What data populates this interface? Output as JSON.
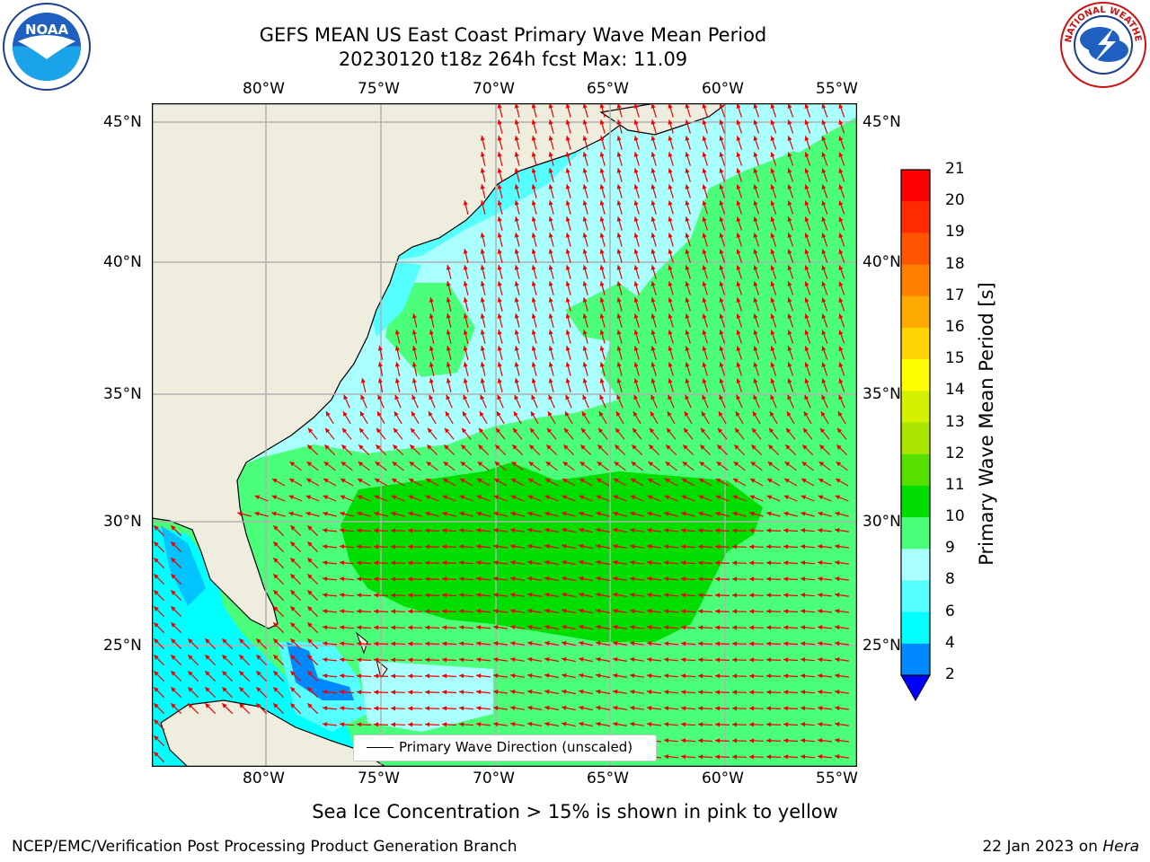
{
  "header": {
    "title_line1": "GEFS MEAN US East Coast Primary Wave Mean Period",
    "title_line2": "20230120 t18z 264h fcst   Max: 11.09"
  },
  "logos": {
    "left": "NOAA",
    "left_ring_text": "NATIONAL OCEANIC AND ATMOSPHERIC ADMINISTRATION · U.S. DEPARTMENT OF COMMERCE",
    "right_ring_text": "NATIONAL WEATHER SERVICE"
  },
  "map": {
    "lon_labels": [
      "80°W",
      "75°W",
      "70°W",
      "65°W",
      "60°W",
      "55°W"
    ],
    "lat_labels": [
      "45°N",
      "40°N",
      "35°N",
      "30°N",
      "25°N"
    ],
    "legend_text": "Primary Wave Direction (unscaled)",
    "colors": {
      "land": "#efedde",
      "arrow": "#ee0000",
      "grid": "#b0b0b0"
    }
  },
  "colorbar": {
    "label": "Primary Wave Mean Period [s]",
    "ticks": [
      "21",
      "20",
      "19",
      "18",
      "17",
      "16",
      "15",
      "14",
      "13",
      "12",
      "11",
      "10",
      "9",
      "8",
      "6",
      "4",
      "2"
    ],
    "colors": [
      "#ff0000",
      "#ff2a00",
      "#ff5500",
      "#ff7f00",
      "#ffaa00",
      "#ffd400",
      "#ffff00",
      "#d4f200",
      "#aae600",
      "#55e000",
      "#00dd00",
      "#4cff7a",
      "#aaffff",
      "#55ffff",
      "#00ffff",
      "#0088ff",
      "#0000ff"
    ]
  },
  "caption": "Sea Ice Concentration > 15% is shown in pink to yellow",
  "footer": {
    "left": "NCEP/EMC/Verification Post Processing Product Generation Branch",
    "date": "22 Jan 2023 on ",
    "machine": "Hera"
  }
}
